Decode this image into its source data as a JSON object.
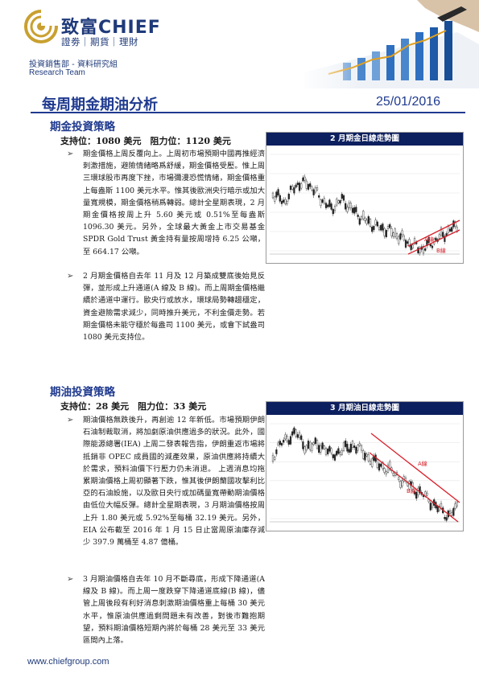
{
  "header": {
    "brand_name": "致富CHIEF",
    "brand_sub": "證劵｜期貨｜理財",
    "department": "投資銷售部 - 資料研究組",
    "team": "Research Team"
  },
  "report": {
    "title": "每周期金期油分析",
    "date": "25/01/2016"
  },
  "gold": {
    "heading": "期金投資策略",
    "support_resistance": "支持位：1080 美元　阻力位：1120 美元",
    "bullets": [
      "期金價格上周反覆向上。上周初市場預期中國再推經濟刺激措施，避險情緒略爲舒緩，期金價格受壓。惟上周三環球股市再度下挫，市場彌漫恐慌情緒，期金價格重上每盎斯 1100 美元水平。惟其後歐洲央行暗示或加大量寬規模，期金價格稍爲轉弱。總計全星期表現，2 月期金價格按周上升 5.60 美元或 0.51%至每盎斯 1096.30 美元。另外，全球最大黃金上市交易基金 SPDR Gold Trust 黃金持有量按周增持 6.25 公噸，至 664.17 公噸。",
      "2 月期金價格自去年 11 月及 12 月築成雙底後始見反彈，並形成上升通道(A 線及 B 線)。而上周期金價格繼續於通道中運行。歐央行或放水，環球局勢轉趨穩定，資金避險需求減少，同時推升美元，不利金價走勢。若期金價格未能守穩於每盎司 1100 美元，或會下試盎司 1080 美元支持位。"
    ],
    "chart": {
      "title": "2 月期金日線走勢圖",
      "label_a": "A線",
      "label_b": "B線"
    }
  },
  "oil": {
    "heading": "期油投資策略",
    "support_resistance": "支持位：28 美元　阻力位：33 美元",
    "bullets": [
      "期油價格無跌後升，再創逾 12 年新低。市場預期伊朗石油制裁取消，將加劇原油供應過多的狀況。此外，國際能源總署(IEA) 上周二發表報告指，伊朗重返市場將抵銷非 OPEC 成員國的減產效果，原油供應將持續大於需求，預料油價下行壓力仍未消退。 上週消息均拖累期油價格上周初顯著下跌，惟其後伊朗蘭國攻擊利比亞的石油設施，以及歐日央行或加碼量寬帶動期油價格由低位大幅反彈。總計全星期表現，3 月期油價格按周上升 1.80 美元或 5.92%至每桶 32.19 美元。另外，EIA 公布截至 2016 年 1 月 15 日止當周原油庫存減少 397.9 萬桶至 4.87 億桶。",
      "3 月期油價格自去年 10 月不斷尋底，形成下降通道(A 線及 B 線)。而上周一度跌穿下降通道底線(B 線)，儘管上周後段有利好消息刺激期油價格重上每桶 30 美元水平，惟原油供應過剩問題未有改善，對後市難抱期望，預料期油價格短期內將於每桶 28 美元至 33 美元區間內上落。"
    ],
    "chart": {
      "title": "3 月期油日線走勢圖",
      "label_a": "A線",
      "label_b": "B線"
    }
  },
  "footer": {
    "url": "www.chiefgroup.com"
  },
  "colors": {
    "brand_blue": "#1f3a8f",
    "chart_header": "#0c1f5e",
    "logo_gold": "#c9a030",
    "channel_red": "#d8202a"
  }
}
